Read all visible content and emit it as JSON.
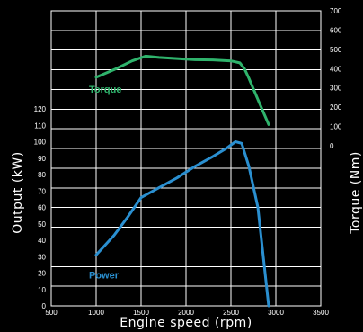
{
  "chart_data": {
    "type": "line",
    "xlabel": "Engine speed (rpm)",
    "ylabel_left": "Output (kW)",
    "ylabel_right": "Torque (Nm)",
    "xlim": [
      500,
      3500
    ],
    "x_ticks": [
      "500",
      "1000",
      "1500",
      "2000",
      "2500",
      "3000",
      "3500"
    ],
    "ylim_left": [
      0,
      120
    ],
    "y_ticks_left": [
      "0",
      "10",
      "20",
      "30",
      "40",
      "50",
      "60",
      "70",
      "80",
      "90",
      "100",
      "110",
      "120"
    ],
    "ylim_right": [
      0,
      700
    ],
    "y_ticks_right": [
      "0",
      "100",
      "200",
      "300",
      "400",
      "500",
      "600",
      "700"
    ],
    "grid": true,
    "series": [
      {
        "name": "Torque",
        "axis": "right",
        "color": "#2fb36c",
        "x": [
          1000,
          1200,
          1400,
          1550,
          1700,
          1900,
          2100,
          2300,
          2500,
          2600,
          2650,
          2700,
          2800,
          2920
        ],
        "y": [
          355,
          395,
          440,
          465,
          458,
          452,
          446,
          445,
          440,
          430,
          400,
          350,
          240,
          110
        ]
      },
      {
        "name": "Power",
        "axis": "left",
        "color": "#2a8fd0",
        "x": [
          1000,
          1200,
          1350,
          1500,
          1700,
          1900,
          2100,
          2300,
          2450,
          2550,
          2620,
          2700,
          2800,
          2920
        ],
        "y": [
          31,
          43,
          54,
          66,
          72,
          78,
          85,
          91,
          96,
          100,
          99,
          85,
          60,
          0
        ]
      }
    ]
  }
}
